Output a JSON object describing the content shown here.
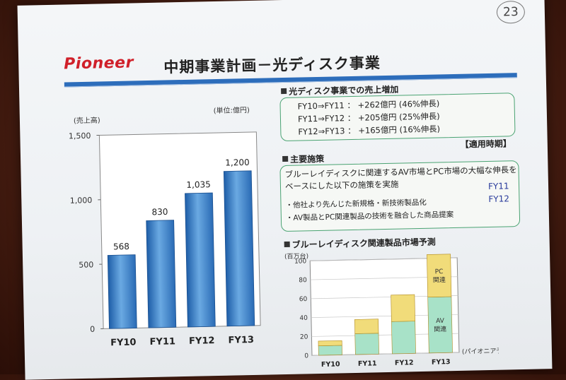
{
  "slide": {
    "page_number": "23",
    "logo_text": "Pioneer",
    "title": "中期事業計画－光ディスク事業"
  },
  "left_chart": {
    "unit_label": "(単位:億円)",
    "yaxis_label": "(売上高)"
  },
  "sales_increase": {
    "heading": "光ディスク事業での売上増加",
    "lines": [
      "FY10⇒FY11 ： +262億円 (46%伸長)",
      "FY11⇒FY12 ： +205億円 (25%伸長)",
      "FY12⇒FY13 ： +165億円 (16%伸長)"
    ]
  },
  "measures": {
    "period_label": "【適用時期】",
    "heading": "主要施策",
    "intro_line1": "ブルーレイディスクに関連するAV市場とPC市場の大幅な伸長を",
    "intro_line2": "ベースにした以下の施策を実施",
    "item1": "・他社より先んじた新規格・新技術製品化",
    "item2": "・AV製品とPC関連製品の技術を融合した商品提案",
    "fy1": "FY11",
    "fy2": "FY12"
  },
  "market_forecast": {
    "heading": "ブルーレイディスク関連製品市場予測",
    "unit": "(百万台)",
    "source": "(パイオニア予測)",
    "pc_label_1": "PC",
    "pc_label_2": "関連",
    "av_label_1": "AV",
    "av_label_2": "関連"
  },
  "colors": {
    "accent_blue": "#2d6dbb",
    "green_border": "#4aa372",
    "logo_red": "#d0202a",
    "pc_yellow": "#f1dc7a",
    "av_green": "#a8e2c8"
  },
  "chart_data": [
    {
      "type": "bar",
      "categories": [
        "FY10",
        "FY11",
        "FY12",
        "FY13"
      ],
      "values": [
        568,
        830,
        1035,
        1200
      ],
      "value_labels": [
        "568",
        "830",
        "1,035",
        "1,200"
      ],
      "ylim": [
        0,
        1500
      ],
      "yticks": [
        0,
        500,
        1000,
        1500
      ],
      "ytick_labels": [
        "0",
        "500",
        "1,000",
        "1,500"
      ],
      "ylabel": "(売上高)",
      "grid": false
    },
    {
      "type": "bar",
      "stacked": true,
      "categories": [
        "FY10",
        "FY11",
        "FY12",
        "FY13"
      ],
      "series": [
        {
          "name": "AV 関連",
          "values": [
            10,
            22,
            34,
            59
          ]
        },
        {
          "name": "PC 関連",
          "values": [
            5,
            15,
            28,
            45
          ]
        }
      ],
      "ylim": [
        0,
        100
      ],
      "yticks": [
        0,
        20,
        40,
        60,
        80,
        100
      ],
      "ylabel": "(百万台)",
      "grid": true
    }
  ]
}
